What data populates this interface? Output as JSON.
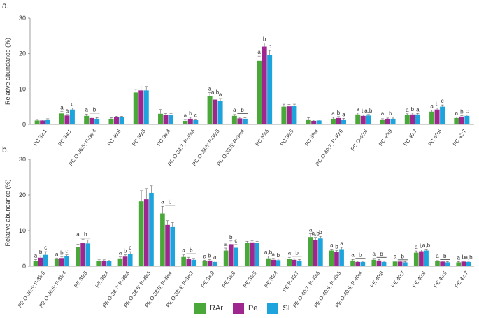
{
  "figure": {
    "legend": [
      {
        "name": "RAr",
        "color": "#4aa83a"
      },
      {
        "name": "Pe",
        "color": "#a0268f"
      },
      {
        "name": "SL",
        "color": "#1ea4dc"
      }
    ]
  },
  "chart_data": [
    {
      "panel": "a.",
      "type": "bar",
      "ylabel": "Relative abundance (%)",
      "ylim": [
        0,
        30
      ],
      "yticks": [
        0,
        10,
        20,
        30
      ],
      "categories": [
        "PC 32:1",
        "PC 34:1",
        "PC O-36:5; P-36:4",
        "PC 36:6",
        "PC 36:5",
        "PC 36:4",
        "PC O-38:7; P-38:6",
        "PC O-38:6; P-38:5",
        "PC O-38:5; P-38:4",
        "PC 38:6",
        "PC 38:5",
        "PC 38:4",
        "PC O-40:7; P-40:6",
        "PC O-40:6",
        "PC 40:9",
        "PC 40:7",
        "PC 40:6",
        "PC 42:7"
      ],
      "series": [
        {
          "name": "RAr",
          "color": "#4aa83a",
          "values": [
            1.1,
            3.1,
            2.4,
            1.6,
            9.0,
            3.0,
            1.0,
            8.0,
            2.4,
            18.0,
            5.0,
            1.4,
            1.6,
            2.8,
            1.4,
            2.6,
            3.6,
            1.8
          ],
          "errors": [
            0.3,
            0.6,
            0.5,
            0.3,
            0.9,
            1.2,
            0.4,
            1.0,
            0.4,
            1.3,
            0.7,
            0.5,
            0.4,
            0.4,
            0.2,
            0.4,
            0.4,
            0.3
          ]
        },
        {
          "name": "Pe",
          "color": "#a0268f",
          "values": [
            1.1,
            2.5,
            1.8,
            2.0,
            9.6,
            2.6,
            1.6,
            7.0,
            1.7,
            22.0,
            5.1,
            1.0,
            1.8,
            2.4,
            1.6,
            2.8,
            4.2,
            2.2
          ],
          "errors": [
            0.2,
            0.3,
            0.3,
            0.3,
            1.0,
            0.5,
            0.4,
            1.0,
            0.3,
            1.0,
            0.5,
            0.2,
            0.4,
            0.3,
            0.2,
            0.4,
            0.4,
            0.3
          ]
        },
        {
          "name": "SL",
          "color": "#1ea4dc",
          "values": [
            1.4,
            4.2,
            1.6,
            2.0,
            9.6,
            2.7,
            1.2,
            6.6,
            1.6,
            19.6,
            5.2,
            1.1,
            1.4,
            2.5,
            1.6,
            2.8,
            5.0,
            2.4
          ],
          "errors": [
            0.2,
            0.4,
            0.3,
            0.3,
            1.1,
            0.4,
            0.3,
            0.7,
            0.3,
            1.3,
            0.5,
            0.2,
            0.3,
            0.3,
            0.2,
            0.3,
            0.5,
            0.3
          ]
        }
      ],
      "annotations": [
        {
          "category": 1,
          "letters": [
            "a",
            "a",
            "c"
          ],
          "bar": false
        },
        {
          "category": 2,
          "letters": [
            "a",
            "b"
          ],
          "bar": true
        },
        {
          "category": 6,
          "letters": [
            "a",
            "b",
            "c"
          ],
          "bar": false
        },
        {
          "category": 7,
          "letters": [
            "a",
            "a,b",
            "a"
          ],
          "bar": false
        },
        {
          "category": 8,
          "letters": [
            "a",
            "b"
          ],
          "bar": true
        },
        {
          "category": 9,
          "letters": [
            "a",
            "b",
            "c"
          ],
          "bar": false
        },
        {
          "category": 12,
          "letters": [
            "a",
            "b",
            "a"
          ],
          "bar": false
        },
        {
          "category": 13,
          "letters": [
            "a",
            "b",
            "a,b"
          ],
          "bar": false
        },
        {
          "category": 14,
          "letters": [
            "a",
            "b"
          ],
          "bar": true
        },
        {
          "category": 15,
          "letters": [
            "a",
            "b",
            "a"
          ],
          "bar": false
        },
        {
          "category": 16,
          "letters": [
            "a",
            "b",
            "c"
          ],
          "bar": false
        },
        {
          "category": 17,
          "letters": [
            "a",
            "b",
            "c"
          ],
          "bar": false
        }
      ]
    },
    {
      "panel": "b.",
      "type": "bar",
      "ylabel": "Relative abundance (%)",
      "ylim": [
        0,
        30
      ],
      "yticks": [
        0,
        10,
        20,
        30
      ],
      "categories": [
        "PE O-36:6; P-36:5",
        "PE O-36:5; P-36:4",
        "PE 36:5",
        "PE 36:4",
        "PE O-38:7; P-38:6",
        "PE O-38:6; P-38:5",
        "PE O-38:5; P-38:4",
        "PE O-38:4; P-38:3",
        "PE 38:8",
        "PE 38:6",
        "PE 38:5",
        "PE 38:4",
        "PE P-40:7",
        "PE O-40:7; P-40:6",
        "PE O-40:6; P-40:5",
        "PE O-40:5; P-40:4",
        "PE 40:8",
        "PE 40:7",
        "PE 40:6",
        "PE 40:5",
        "PE 42:7"
      ],
      "series": [
        {
          "name": "RAr",
          "color": "#4aa83a",
          "values": [
            1.5,
            2.0,
            5.4,
            1.4,
            2.2,
            18.2,
            14.8,
            2.6,
            1.4,
            4.4,
            6.6,
            2.2,
            2.1,
            8.2,
            4.4,
            1.6,
            1.8,
            1.3,
            3.8,
            1.4,
            1.1
          ],
          "errors": [
            0.4,
            0.3,
            0.8,
            0.4,
            0.4,
            3.0,
            2.0,
            0.6,
            0.3,
            0.7,
            0.4,
            0.6,
            0.4,
            0.9,
            0.4,
            0.3,
            0.4,
            0.2,
            0.5,
            0.2,
            0.2
          ],
          "underline": false
        },
        {
          "name": "Pe",
          "color": "#a0268f",
          "values": [
            2.4,
            2.3,
            6.6,
            1.5,
            2.7,
            18.8,
            11.6,
            2.1,
            1.6,
            6.2,
            6.7,
            1.8,
            1.8,
            7.3,
            4.0,
            1.2,
            1.6,
            1.3,
            4.2,
            1.3,
            1.3
          ],
          "errors": [
            0.5,
            0.3,
            1.0,
            0.3,
            0.5,
            3.0,
            1.2,
            0.4,
            0.3,
            0.9,
            0.4,
            0.4,
            0.3,
            0.8,
            0.4,
            0.2,
            0.3,
            0.2,
            0.4,
            0.2,
            0.2
          ]
        },
        {
          "name": "SL",
          "color": "#1ea4dc",
          "values": [
            3.2,
            2.8,
            6.4,
            1.4,
            3.5,
            20.6,
            11.0,
            1.8,
            1.2,
            5.2,
            6.6,
            1.7,
            1.6,
            7.8,
            4.8,
            1.2,
            1.2,
            1.1,
            4.4,
            1.1,
            1.2
          ],
          "errors": [
            0.9,
            0.4,
            1.0,
            0.2,
            0.6,
            2.0,
            1.3,
            0.4,
            0.3,
            0.9,
            0.4,
            0.3,
            0.3,
            0.6,
            0.5,
            0.2,
            0.2,
            0.2,
            0.4,
            0.2,
            0.2
          ]
        }
      ],
      "annotations": [
        {
          "category": 0,
          "letters": [
            "a",
            "b",
            "c"
          ],
          "bar": false
        },
        {
          "category": 1,
          "letters": [
            "a",
            "b",
            "c"
          ],
          "bar": false
        },
        {
          "category": 2,
          "letters": [
            "a",
            "b"
          ],
          "bar": true
        },
        {
          "category": 4,
          "letters": [
            "a",
            "b",
            "c"
          ],
          "bar": false
        },
        {
          "category": 6,
          "letters": [
            "a",
            "b"
          ],
          "bar": true
        },
        {
          "category": 7,
          "letters": [
            "a",
            "b"
          ],
          "bar": true
        },
        {
          "category": 8,
          "letters": [
            "a",
            "b",
            "a"
          ],
          "bar": false
        },
        {
          "category": 9,
          "letters": [
            "a",
            "b",
            "c"
          ],
          "bar": false
        },
        {
          "category": 11,
          "letters": [
            "a,b",
            "a",
            "b"
          ],
          "bar": false
        },
        {
          "category": 12,
          "letters": [
            "a",
            "b"
          ],
          "bar": true
        },
        {
          "category": 13,
          "letters": [
            "a",
            "a,b",
            "b"
          ],
          "bar": false
        },
        {
          "category": 14,
          "letters": [
            "a",
            "b",
            "a"
          ],
          "bar": false
        },
        {
          "category": 15,
          "letters": [
            "a",
            "b"
          ],
          "bar": true
        },
        {
          "category": 16,
          "letters": [
            "a",
            "b"
          ],
          "bar": true
        },
        {
          "category": 17,
          "letters": [
            "a",
            "b"
          ],
          "bar": true
        },
        {
          "category": 18,
          "letters": [
            "a",
            "b",
            "a,b"
          ],
          "bar": false
        },
        {
          "category": 19,
          "letters": [
            "a",
            "b"
          ],
          "bar": true
        },
        {
          "category": 20,
          "letters": [
            "a",
            "b",
            "a,b"
          ],
          "bar": false
        }
      ]
    }
  ]
}
